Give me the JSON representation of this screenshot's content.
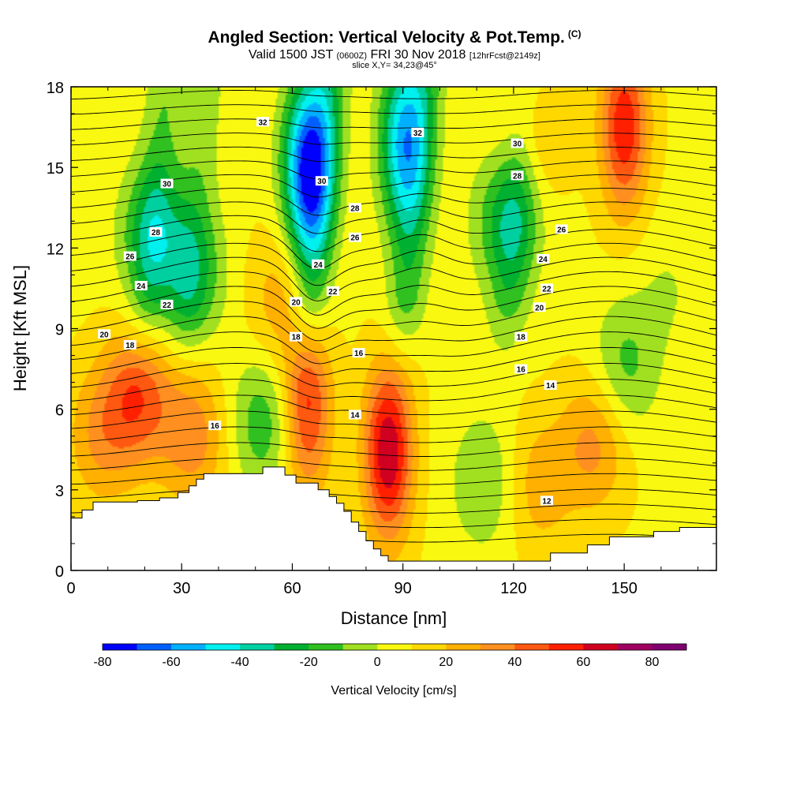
{
  "header": {
    "title": "Angled Section: Vertical Velocity & Pot.Temp.",
    "copyright": "(C)",
    "valid_prefix": "Valid 1500 JST",
    "valid_utc": "(0600Z)",
    "valid_date": "FRI 30 Nov 2018",
    "forecast": "[12hrFcst@2149z]",
    "slice": "slice X,Y= 34,23@45°"
  },
  "chart_data": {
    "type": "heatmap",
    "xlabel": "Distance [nm]",
    "ylabel": "Height [Kft MSL]",
    "xlim": [
      0,
      175
    ],
    "ylim": [
      0,
      18
    ],
    "x_ticks": [
      0,
      30,
      60,
      90,
      120,
      150
    ],
    "y_ticks": [
      0,
      3,
      6,
      9,
      12,
      15,
      18
    ],
    "colorbar": {
      "title": "Vertical Velocity [cm/s]",
      "labels": [
        -80,
        -60,
        -40,
        -20,
        0,
        20,
        40,
        60,
        80
      ],
      "bounds": [
        -80,
        90
      ],
      "step": 10,
      "colors": [
        "#0000ff",
        "#0060ff",
        "#00b0ff",
        "#00f0f0",
        "#00d0a0",
        "#00b030",
        "#30c020",
        "#a0e020",
        "#f8f810",
        "#ffd800",
        "#ffb000",
        "#ff9020",
        "#ff5810",
        "#ff2000",
        "#d00020",
        "#a00060",
        "#800070"
      ]
    },
    "fields": {
      "color_field": "vertical velocity (cm/s)",
      "contour_field": "potential temperature"
    },
    "wind_cells": [
      {
        "x": 22,
        "z": 12.5,
        "w": -30
      },
      {
        "x": 33,
        "z": 11,
        "w": -25
      },
      {
        "x": 64,
        "z": 15,
        "w": -75
      },
      {
        "x": 90,
        "z": 16,
        "w": -55
      },
      {
        "x": 118,
        "z": 13,
        "w": -30
      },
      {
        "x": 150,
        "z": 7.5,
        "w": -22
      },
      {
        "x": 52,
        "z": 5.5,
        "w": -25
      },
      {
        "x": 162,
        "z": 10.5,
        "w": -8
      },
      {
        "x": 150,
        "z": 16.5,
        "w": 50
      },
      {
        "x": 86,
        "z": 4.4,
        "w": 62
      },
      {
        "x": 64,
        "z": 6,
        "w": 45
      },
      {
        "x": 18,
        "z": 6.5,
        "w": 38
      },
      {
        "x": 33,
        "z": 5,
        "w": 28
      },
      {
        "x": 8,
        "z": 5,
        "w": 22
      },
      {
        "x": 126,
        "z": 16.5,
        "w": 18
      },
      {
        "x": 142,
        "z": 4.8,
        "w": 26
      },
      {
        "x": 127,
        "z": 3.2,
        "w": 18
      },
      {
        "x": 112,
        "z": 3.3,
        "w": -18
      },
      {
        "x": 57,
        "z": 10,
        "w": 18
      }
    ],
    "isentropes": {
      "label_values": [
        12,
        14,
        16,
        18,
        20,
        22,
        24,
        26,
        28,
        30,
        32
      ],
      "labels": [
        {
          "text": "32",
          "x": 52,
          "z": 16.7
        },
        {
          "text": "32",
          "x": 94,
          "z": 16.3
        },
        {
          "text": "30",
          "x": 121,
          "z": 15.9
        },
        {
          "text": "30",
          "x": 26,
          "z": 14.4
        },
        {
          "text": "30",
          "x": 68,
          "z": 14.5
        },
        {
          "text": "28",
          "x": 121,
          "z": 14.7
        },
        {
          "text": "28",
          "x": 77,
          "z": 13.5
        },
        {
          "text": "28",
          "x": 23,
          "z": 12.6
        },
        {
          "text": "26",
          "x": 133,
          "z": 12.7
        },
        {
          "text": "26",
          "x": 77,
          "z": 12.4
        },
        {
          "text": "26",
          "x": 16,
          "z": 11.7
        },
        {
          "text": "24",
          "x": 128,
          "z": 11.6
        },
        {
          "text": "24",
          "x": 67,
          "z": 11.4
        },
        {
          "text": "24",
          "x": 19,
          "z": 10.6
        },
        {
          "text": "22",
          "x": 129,
          "z": 10.5
        },
        {
          "text": "22",
          "x": 71,
          "z": 10.4
        },
        {
          "text": "22",
          "x": 26,
          "z": 9.9
        },
        {
          "text": "20",
          "x": 127,
          "z": 9.8
        },
        {
          "text": "20",
          "x": 61,
          "z": 10
        },
        {
          "text": "20",
          "x": 9,
          "z": 8.8
        },
        {
          "text": "18",
          "x": 122,
          "z": 8.7
        },
        {
          "text": "18",
          "x": 61,
          "z": 8.7
        },
        {
          "text": "18",
          "x": 16,
          "z": 8.4
        },
        {
          "text": "16",
          "x": 78,
          "z": 8.1
        },
        {
          "text": "16",
          "x": 122,
          "z": 7.5
        },
        {
          "text": "16",
          "x": 39,
          "z": 5.4
        },
        {
          "text": "14",
          "x": 130,
          "z": 6.9
        },
        {
          "text": "14",
          "x": 77,
          "z": 5.8
        },
        {
          "text": "12",
          "x": 129,
          "z": 2.6
        }
      ]
    },
    "terrain_kft": [
      [
        0,
        1.95
      ],
      [
        3,
        1.95
      ],
      [
        3,
        2.25
      ],
      [
        6,
        2.25
      ],
      [
        6,
        2.55
      ],
      [
        12,
        2.55
      ],
      [
        18,
        2.55
      ],
      [
        18,
        2.6
      ],
      [
        24,
        2.6
      ],
      [
        24,
        2.7
      ],
      [
        29,
        2.7
      ],
      [
        29,
        2.9
      ],
      [
        32,
        2.9
      ],
      [
        32,
        3.15
      ],
      [
        34,
        3.15
      ],
      [
        34,
        3.4
      ],
      [
        36,
        3.4
      ],
      [
        36,
        3.6
      ],
      [
        45,
        3.6
      ],
      [
        45,
        3.6
      ],
      [
        52,
        3.6
      ],
      [
        52,
        3.85
      ],
      [
        58,
        3.85
      ],
      [
        58,
        3.55
      ],
      [
        61,
        3.55
      ],
      [
        61,
        3.25
      ],
      [
        67,
        3.25
      ],
      [
        67,
        3.0
      ],
      [
        70,
        3.0
      ],
      [
        70,
        2.75
      ],
      [
        72,
        2.75
      ],
      [
        72,
        2.5
      ],
      [
        74,
        2.5
      ],
      [
        74,
        2.2
      ],
      [
        76,
        2.2
      ],
      [
        76,
        1.8
      ],
      [
        78,
        1.8
      ],
      [
        78,
        1.45
      ],
      [
        80,
        1.45
      ],
      [
        80,
        1.1
      ],
      [
        82,
        1.1
      ],
      [
        82,
        0.8
      ],
      [
        84,
        0.8
      ],
      [
        84,
        0.55
      ],
      [
        86,
        0.55
      ],
      [
        86,
        0.35
      ],
      [
        128,
        0.35
      ],
      [
        128,
        0.35
      ],
      [
        130,
        0.35
      ],
      [
        130,
        0.65
      ],
      [
        140,
        0.65
      ],
      [
        140,
        0.95
      ],
      [
        146,
        0.95
      ],
      [
        146,
        1.25
      ],
      [
        158,
        1.25
      ],
      [
        158,
        1.45
      ],
      [
        165,
        1.45
      ],
      [
        165,
        1.6
      ],
      [
        175,
        1.6
      ]
    ]
  }
}
